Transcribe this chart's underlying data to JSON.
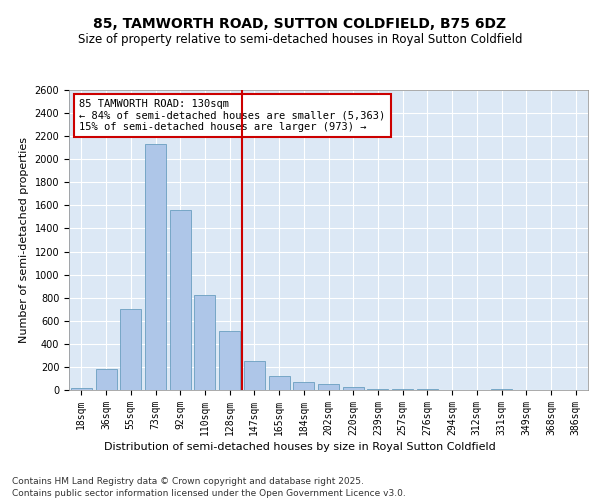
{
  "title": "85, TAMWORTH ROAD, SUTTON COLDFIELD, B75 6DZ",
  "subtitle": "Size of property relative to semi-detached houses in Royal Sutton Coldfield",
  "xlabel_bottom": "Distribution of semi-detached houses by size in Royal Sutton Coldfield",
  "ylabel": "Number of semi-detached properties",
  "categories": [
    "18sqm",
    "36sqm",
    "55sqm",
    "73sqm",
    "92sqm",
    "110sqm",
    "128sqm",
    "147sqm",
    "165sqm",
    "184sqm",
    "202sqm",
    "220sqm",
    "239sqm",
    "257sqm",
    "276sqm",
    "294sqm",
    "312sqm",
    "331sqm",
    "349sqm",
    "368sqm",
    "386sqm"
  ],
  "values": [
    15,
    180,
    700,
    2130,
    1560,
    820,
    510,
    255,
    125,
    70,
    50,
    30,
    5,
    5,
    10,
    0,
    0,
    5,
    0,
    0,
    0
  ],
  "bar_color": "#aec6e8",
  "bar_edge_color": "#6a9fc0",
  "vline_x": 6.5,
  "vline_color": "#cc0000",
  "annotation_title": "85 TAMWORTH ROAD: 130sqm",
  "annotation_line2": "← 84% of semi-detached houses are smaller (5,363)",
  "annotation_line3": "15% of semi-detached houses are larger (973) →",
  "annotation_box_color": "#cc0000",
  "ylim": [
    0,
    2600
  ],
  "yticks": [
    0,
    200,
    400,
    600,
    800,
    1000,
    1200,
    1400,
    1600,
    1800,
    2000,
    2200,
    2400,
    2600
  ],
  "footnote1": "Contains HM Land Registry data © Crown copyright and database right 2025.",
  "footnote2": "Contains public sector information licensed under the Open Government Licence v3.0.",
  "bg_color": "#dce8f5",
  "title_fontsize": 10,
  "subtitle_fontsize": 8.5,
  "tick_fontsize": 7,
  "ylabel_fontsize": 8,
  "xlabel_fontsize": 8,
  "annotation_fontsize": 7.5,
  "footnote_fontsize": 6.5
}
